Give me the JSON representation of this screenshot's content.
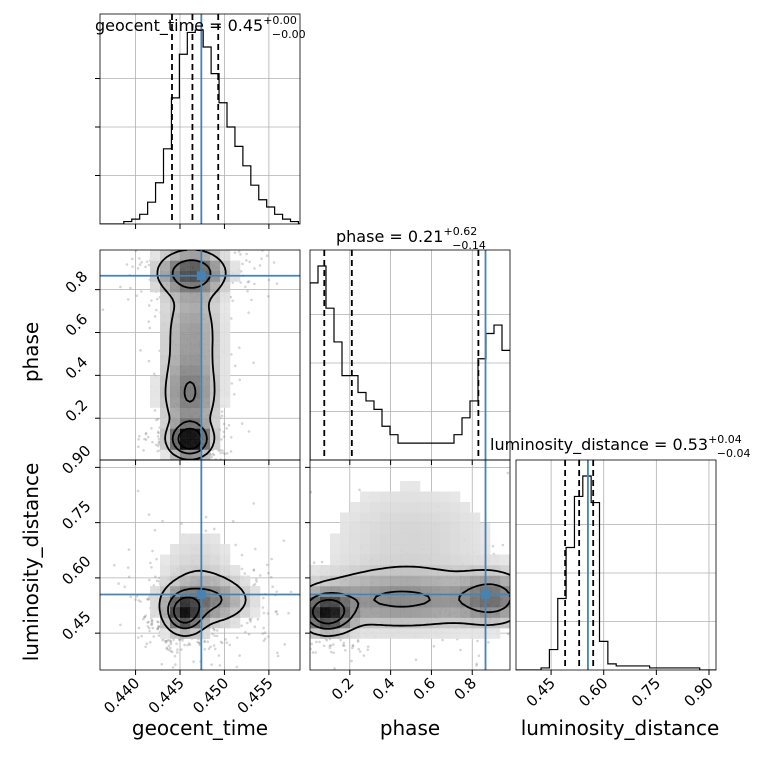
{
  "chart_data": {
    "type": "corner",
    "parameters": [
      "geocent_time",
      "phase",
      "luminosity_distance"
    ],
    "truths": [
      0.4474,
      0.865,
      0.555
    ],
    "grid": true,
    "titles": [
      {
        "label": "geocent_time",
        "value": "0.45",
        "plus": "+0.00",
        "minus": "−0.00"
      },
      {
        "label": "phase",
        "value": "0.21",
        "plus": "+0.62",
        "minus": "−0.14"
      },
      {
        "label": "luminosity_distance",
        "value": "0.53",
        "plus": "+0.04",
        "minus": "−0.04"
      }
    ],
    "ranges": [
      [
        0.436,
        0.4585
      ],
      [
        0.005,
        0.985
      ],
      [
        0.35,
        0.92
      ]
    ],
    "ticks": [
      {
        "values": [
          0.44,
          0.445,
          0.45,
          0.455
        ],
        "labels": [
          "0.440",
          "0.445",
          "0.450",
          "0.455"
        ]
      },
      {
        "values": [
          0.2,
          0.4,
          0.6,
          0.8
        ],
        "labels": [
          "0.2",
          "0.4",
          "0.6",
          "0.8"
        ]
      },
      {
        "values": [
          0.45,
          0.6,
          0.75,
          0.9
        ],
        "labels": [
          "0.45",
          "0.60",
          "0.75",
          "0.90"
        ]
      }
    ],
    "quantiles": [
      [
        0.4441,
        0.4464,
        0.4493
      ],
      [
        0.075,
        0.21,
        0.83
      ],
      [
        0.49,
        0.53,
        0.57
      ]
    ],
    "histograms": [
      {
        "edges_start": 0.436,
        "bin_width": 0.000893,
        "counts": [
          0,
          0,
          0,
          1,
          2,
          4,
          9,
          17,
          31,
          52,
          70,
          79,
          80,
          73,
          62,
          50,
          40,
          32,
          24,
          16,
          10,
          7,
          4,
          2,
          1,
          0
        ]
      },
      {
        "edges_start": 0.005,
        "bin_width": 0.0392,
        "counts": [
          21,
          23,
          18,
          14,
          10,
          10,
          8,
          7,
          6,
          4,
          3,
          2,
          2,
          2,
          2,
          2,
          2,
          2,
          3,
          5,
          7,
          12,
          15,
          16,
          13
        ]
      },
      {
        "edges_start": 0.35,
        "bin_width": 0.0238,
        "counts": [
          0,
          0,
          0,
          1,
          10,
          35,
          60,
          85,
          95,
          82,
          14,
          3,
          2,
          2,
          2,
          2,
          1,
          1,
          1,
          1,
          1,
          1,
          0,
          0
        ]
      }
    ],
    "pairs": [
      {
        "x": 0,
        "y": 1,
        "blobs": [
          {
            "cx": 0.4461,
            "cy": 0.1,
            "sx": 0.0013,
            "sy": 0.045,
            "w": 1.0
          },
          {
            "cx": 0.4461,
            "cy": 0.3,
            "sx": 0.0018,
            "sy": 0.11,
            "w": 0.35
          },
          {
            "cx": 0.4463,
            "cy": 0.88,
            "sx": 0.0022,
            "sy": 0.06,
            "w": 0.55
          },
          {
            "cx": 0.4463,
            "cy": 0.6,
            "sx": 0.002,
            "sy": 0.16,
            "w": 0.25
          }
        ]
      },
      {
        "x": 0,
        "y": 2,
        "blobs": [
          {
            "cx": 0.4455,
            "cy": 0.505,
            "sx": 0.0012,
            "sy": 0.03,
            "w": 1.0
          },
          {
            "cx": 0.448,
            "cy": 0.54,
            "sx": 0.0028,
            "sy": 0.035,
            "w": 0.45
          },
          {
            "cx": 0.447,
            "cy": 0.6,
            "sx": 0.003,
            "sy": 0.1,
            "w": 0.12
          }
        ]
      },
      {
        "x": 1,
        "y": 2,
        "blobs": [
          {
            "cx": 0.09,
            "cy": 0.505,
            "sx": 0.07,
            "sy": 0.03,
            "w": 1.0
          },
          {
            "cx": 0.45,
            "cy": 0.54,
            "sx": 0.3,
            "sy": 0.045,
            "w": 0.4
          },
          {
            "cx": 0.9,
            "cy": 0.545,
            "sx": 0.1,
            "sy": 0.04,
            "w": 0.45
          },
          {
            "cx": 0.5,
            "cy": 0.7,
            "sx": 0.3,
            "sy": 0.12,
            "w": 0.1
          }
        ]
      }
    ]
  }
}
